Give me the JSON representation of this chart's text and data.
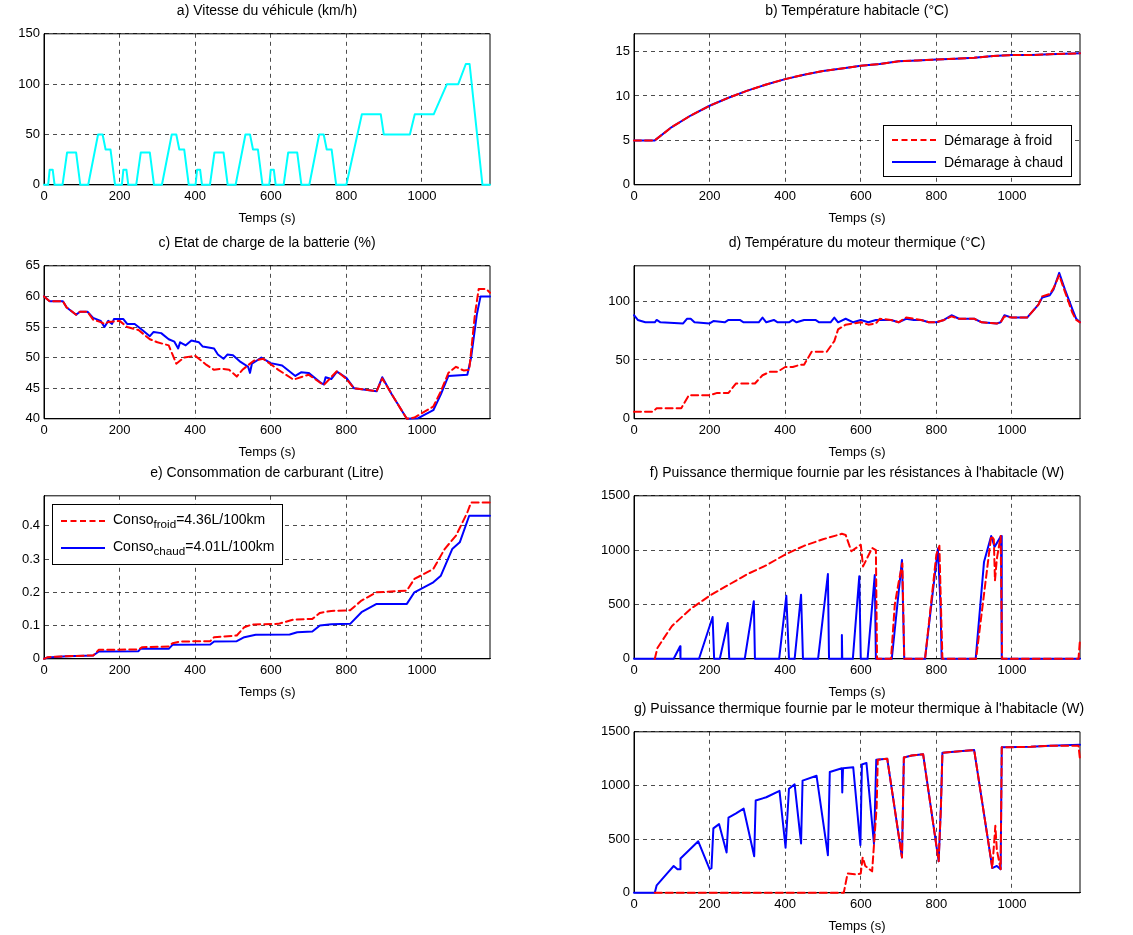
{
  "chart_data": [
    {
      "type": "line",
      "title": "a) Vitesse du véhicule (km/h)",
      "xlabel": "Temps (s)",
      "xlim": [
        0,
        1180
      ],
      "xticks": [
        0,
        200,
        400,
        600,
        800,
        1000
      ],
      "ylim": [
        0,
        150
      ],
      "yticks": [
        0,
        50,
        100,
        150
      ],
      "grid": true,
      "series": [
        {
          "color": "#00ffff",
          "line_style": "solid",
          "x": [
            0,
            11,
            15,
            23,
            28,
            49,
            61,
            85,
            96,
            117,
            143,
            155,
            163,
            176,
            188,
            195,
            206,
            210,
            218,
            223,
            244,
            256,
            280,
            291,
            312,
            338,
            350,
            358,
            371,
            383,
            390,
            401,
            405,
            413,
            418,
            439,
            451,
            475,
            486,
            507,
            533,
            545,
            553,
            566,
            578,
            585,
            596,
            600,
            608,
            613,
            634,
            646,
            670,
            681,
            702,
            728,
            740,
            748,
            761,
            773,
            800,
            841,
            891,
            899,
            968,
            981,
            1031,
            1066,
            1096,
            1116,
            1126,
            1160,
            1180
          ],
          "values": [
            0,
            0,
            15,
            15,
            0,
            0,
            32,
            32,
            0,
            0,
            50,
            50,
            35,
            35,
            0,
            0,
            0,
            15,
            15,
            0,
            0,
            32,
            32,
            0,
            0,
            50,
            50,
            35,
            35,
            0,
            0,
            0,
            15,
            15,
            0,
            0,
            32,
            32,
            0,
            0,
            50,
            50,
            35,
            35,
            0,
            0,
            0,
            15,
            15,
            0,
            0,
            32,
            32,
            0,
            0,
            50,
            50,
            35,
            35,
            0,
            0,
            70,
            70,
            50,
            50,
            70,
            70,
            100,
            100,
            120,
            120,
            0,
            0
          ]
        }
      ]
    },
    {
      "type": "line",
      "title": "b) Température habitacle (°C)",
      "xlabel": "Temps (s)",
      "xlim": [
        0,
        1180
      ],
      "xticks": [
        0,
        200,
        400,
        600,
        800,
        1000
      ],
      "ylim": [
        0,
        17
      ],
      "yticks": [
        0,
        5,
        10,
        15
      ],
      "grid": true,
      "legend": "bottom right",
      "series": [
        {
          "name": "Démarage à froid",
          "color": "#ff0000",
          "line_style": "dashed",
          "x": [
            0,
            55,
            100,
            150,
            200,
            250,
            300,
            350,
            400,
            450,
            500,
            550,
            600,
            650,
            700,
            750,
            800,
            850,
            900,
            950,
            1000,
            1050,
            1100,
            1180
          ],
          "values": [
            5,
            5,
            6.5,
            7.8,
            8.9,
            9.8,
            10.6,
            11.3,
            11.9,
            12.4,
            12.8,
            13.1,
            13.4,
            13.6,
            13.9,
            14.0,
            14.1,
            14.2,
            14.3,
            14.5,
            14.6,
            14.6,
            14.7,
            14.8
          ]
        },
        {
          "name": "Démarage à chaud",
          "color": "#0000ff",
          "line_style": "solid",
          "x": [
            0,
            55,
            100,
            150,
            200,
            250,
            300,
            350,
            400,
            450,
            500,
            550,
            600,
            650,
            700,
            750,
            800,
            850,
            900,
            950,
            1000,
            1050,
            1100,
            1180
          ],
          "values": [
            5,
            5,
            6.5,
            7.8,
            8.9,
            9.8,
            10.6,
            11.3,
            11.9,
            12.4,
            12.8,
            13.1,
            13.4,
            13.6,
            13.9,
            14.0,
            14.1,
            14.2,
            14.3,
            14.5,
            14.6,
            14.6,
            14.7,
            14.8
          ]
        }
      ]
    },
    {
      "type": "line",
      "title": "c) Etat de charge de la batterie (%)",
      "xlabel": "Temps (s)",
      "xlim": [
        0,
        1180
      ],
      "xticks": [
        0,
        200,
        400,
        600,
        800,
        1000
      ],
      "ylim": [
        40,
        65
      ],
      "yticks": [
        40,
        45,
        50,
        55,
        60,
        65
      ],
      "grid": true,
      "series": [
        {
          "color": "#ff0000",
          "line_style": "dashed",
          "x": [
            0,
            15,
            50,
            60,
            85,
            95,
            115,
            130,
            150,
            160,
            170,
            200,
            220,
            250,
            280,
            300,
            330,
            350,
            370,
            400,
            430,
            450,
            470,
            490,
            510,
            525,
            555,
            580,
            620,
            660,
            700,
            740,
            775,
            800,
            820,
            880,
            895,
            920,
            960,
            980,
            1030,
            1050,
            1070,
            1090,
            1110,
            1125,
            1140,
            1150,
            1170,
            1180
          ],
          "values": [
            60,
            59.2,
            59.2,
            58.2,
            57,
            57.5,
            57.5,
            56.2,
            55.8,
            55.5,
            55.8,
            56,
            55,
            54.5,
            53,
            52.5,
            52,
            49,
            50,
            50.3,
            48.8,
            48,
            48.2,
            48,
            46.9,
            48,
            49.5,
            49.8,
            48,
            46.4,
            47.2,
            45.5,
            47.8,
            46.5,
            45,
            44.5,
            46.6,
            44,
            40,
            40.2,
            42,
            44.5,
            47.5,
            48.5,
            47.9,
            48,
            57,
            61.2,
            61.2,
            60.6
          ]
        },
        {
          "color": "#0000ff",
          "line_style": "solid",
          "x": [
            0,
            15,
            50,
            60,
            85,
            95,
            115,
            130,
            150,
            160,
            170,
            180,
            185,
            210,
            220,
            240,
            260,
            280,
            290,
            310,
            330,
            345,
            355,
            360,
            375,
            390,
            410,
            420,
            450,
            460,
            475,
            485,
            500,
            520,
            540,
            545,
            550,
            575,
            600,
            630,
            665,
            680,
            700,
            730,
            740,
            745,
            760,
            775,
            800,
            820,
            880,
            895,
            920,
            960,
            990,
            1030,
            1050,
            1070,
            1120,
            1130,
            1145,
            1155,
            1180
          ],
          "values": [
            60,
            59.2,
            59.2,
            58.2,
            57,
            57.5,
            57.5,
            56.5,
            56,
            55,
            56,
            55.5,
            56.3,
            56.3,
            55.5,
            55.5,
            54.5,
            53.5,
            54.2,
            54,
            53,
            52.6,
            51.5,
            52.5,
            52,
            52.8,
            52.5,
            51.8,
            51.5,
            50.5,
            49.8,
            50.5,
            50.4,
            49.3,
            48.5,
            47.5,
            49,
            50,
            49.1,
            48.7,
            47,
            47.6,
            47.5,
            46,
            45.6,
            46.8,
            46.5,
            47.7,
            46.7,
            45,
            44.5,
            46.8,
            44,
            40,
            40.1,
            41.4,
            44,
            47,
            47.2,
            50,
            57,
            60,
            60
          ]
        }
      ]
    },
    {
      "type": "line",
      "title": "d) Température du moteur thermique (°C)",
      "xlabel": "Temps (s)",
      "xlim": [
        0,
        1180
      ],
      "xticks": [
        0,
        200,
        400,
        600,
        800,
        1000
      ],
      "ylim": [
        0,
        130
      ],
      "yticks": [
        0,
        50,
        100
      ],
      "grid": true,
      "series": [
        {
          "color": "#ff0000",
          "line_style": "dashed",
          "x": [
            0,
            50,
            60,
            125,
            145,
            200,
            220,
            250,
            270,
            320,
            340,
            360,
            380,
            400,
            420,
            440,
            450,
            470,
            510,
            530,
            540,
            560,
            580,
            600,
            620,
            640,
            650,
            680,
            700,
            720,
            760,
            780,
            800,
            820,
            840,
            860,
            900,
            920,
            960,
            970,
            980,
            1000,
            1040,
            1070,
            1080,
            1100,
            1110,
            1125,
            1140,
            1160,
            1170,
            1180
          ],
          "values": [
            6,
            6,
            9,
            9,
            20,
            20,
            22,
            22,
            30,
            30,
            37,
            40,
            40,
            44,
            44,
            46,
            46,
            57,
            57,
            66,
            76,
            80,
            81,
            82,
            80,
            81,
            85,
            84,
            82,
            86,
            84,
            82,
            82,
            84,
            87,
            85,
            85,
            82,
            81,
            82,
            87,
            86,
            86,
            97,
            104,
            106,
            111,
            122,
            108,
            90,
            84,
            82
          ]
        },
        {
          "color": "#0000ff",
          "line_style": "solid",
          "x": [
            0,
            10,
            30,
            55,
            60,
            70,
            130,
            140,
            150,
            160,
            200,
            210,
            240,
            250,
            280,
            290,
            330,
            340,
            350,
            370,
            380,
            410,
            420,
            430,
            450,
            480,
            490,
            520,
            530,
            540,
            560,
            580,
            600,
            620,
            640,
            680,
            700,
            720,
            740,
            760,
            780,
            800,
            820,
            840,
            860,
            900,
            920,
            960,
            970,
            980,
            1000,
            1040,
            1070,
            1080,
            1100,
            1110,
            1125,
            1140,
            1160,
            1170,
            1180
          ],
          "values": [
            88,
            84,
            82,
            82,
            84,
            82,
            81,
            85,
            85,
            82,
            81,
            83,
            82,
            84,
            84,
            82,
            82,
            86,
            82,
            84,
            82,
            82,
            84,
            82,
            84,
            84,
            82,
            82,
            86,
            82,
            85,
            82,
            84,
            82,
            84,
            84,
            82,
            85,
            84,
            84,
            82,
            82,
            84,
            88,
            85,
            85,
            82,
            81,
            82,
            88,
            86,
            86,
            97,
            103,
            105,
            110,
            124,
            110,
            93,
            85,
            82
          ]
        }
      ]
    },
    {
      "type": "line",
      "title": "e) Consommation de carburant (Litre)",
      "xlabel": "Temps (s)",
      "xlim": [
        0,
        1180
      ],
      "xticks": [
        0,
        200,
        400,
        600,
        800,
        1000
      ],
      "ylim": [
        0,
        0.49
      ],
      "yticks": [
        0,
        0.1,
        0.2,
        0.3,
        0.4
      ],
      "grid": true,
      "legend": "top left",
      "series": [
        {
          "name": "Conso$_{froid}$=4.36L/100km",
          "color": "#ff0000",
          "line_style": "dashed",
          "x": [
            0,
            10,
            60,
            130,
            145,
            250,
            260,
            330,
            340,
            360,
            440,
            450,
            510,
            530,
            550,
            620,
            660,
            710,
            730,
            760,
            810,
            840,
            880,
            960,
            980,
            1030,
            1060,
            1090,
            1120,
            1130,
            1180
          ],
          "values": [
            0,
            0.005,
            0.008,
            0.01,
            0.027,
            0.028,
            0.035,
            0.037,
            0.047,
            0.052,
            0.053,
            0.065,
            0.07,
            0.095,
            0.103,
            0.105,
            0.118,
            0.12,
            0.138,
            0.144,
            0.146,
            0.175,
            0.2,
            0.205,
            0.24,
            0.27,
            0.33,
            0.37,
            0.44,
            0.47,
            0.47
          ]
        },
        {
          "name": "Conso$_{chaud}$=4.01L/100km",
          "color": "#0000ff",
          "line_style": "solid",
          "x": [
            0,
            10,
            60,
            130,
            145,
            250,
            255,
            330,
            340,
            440,
            450,
            510,
            530,
            560,
            650,
            670,
            710,
            730,
            760,
            810,
            840,
            880,
            960,
            980,
            1030,
            1050,
            1080,
            1100,
            1125,
            1180
          ],
          "values": [
            0,
            0.004,
            0.008,
            0.01,
            0.022,
            0.023,
            0.03,
            0.03,
            0.042,
            0.043,
            0.052,
            0.053,
            0.065,
            0.072,
            0.073,
            0.08,
            0.082,
            0.1,
            0.104,
            0.105,
            0.14,
            0.165,
            0.165,
            0.2,
            0.23,
            0.25,
            0.33,
            0.35,
            0.43,
            0.43
          ]
        }
      ]
    },
    {
      "type": "line",
      "title": "f) Puissance thermique fournie par les résistances à l'habitacle (W)",
      "xlabel": "Temps (s)",
      "xlim": [
        0,
        1180
      ],
      "xticks": [
        0,
        200,
        400,
        600,
        800,
        1000
      ],
      "ylim": [
        0,
        1500
      ],
      "yticks": [
        0,
        500,
        1000,
        1500
      ],
      "grid": true,
      "series": [
        {
          "color": "#ff0000",
          "line_style": "dashed",
          "x": [
            55,
            62,
            100,
            150,
            200,
            250,
            300,
            350,
            400,
            450,
            500,
            550,
            560,
            575,
            600,
            606,
            630,
            640,
            643,
            680,
            690,
            700,
            710,
            715,
            770,
            800,
            808,
            812,
            816,
            905,
            945,
            952,
            955,
            960,
            970,
            974,
            1176,
            1180
          ],
          "values": [
            0,
            100,
            300,
            460,
            580,
            680,
            780,
            860,
            960,
            1040,
            1100,
            1150,
            1140,
            990,
            1050,
            850,
            1020,
            1000,
            0,
            0,
            500,
            700,
            880,
            0,
            0,
            960,
            1040,
            500,
            0,
            0,
            1130,
            1100,
            720,
            920,
            1130,
            0,
            0,
            180
          ]
        },
        {
          "color": "#0000ff",
          "line_style": "solid",
          "x": [
            0,
            105,
            122,
            123,
            172,
            208,
            212,
            227,
            248,
            252,
            293,
            317,
            320,
            384,
            403,
            410,
            425,
            442,
            447,
            487,
            513,
            516,
            549,
            550,
            551,
            579,
            596,
            600,
            618,
            637,
            640,
            682,
            709,
            715,
            770,
            804,
            811,
            814,
            904,
            926,
            945,
            954,
            971,
            973,
            1180
          ],
          "values": [
            0,
            0,
            115,
            0,
            0,
            385,
            0,
            0,
            330,
            0,
            0,
            530,
            0,
            0,
            580,
            0,
            0,
            590,
            0,
            0,
            780,
            0,
            0,
            220,
            0,
            0,
            760,
            0,
            0,
            770,
            0,
            0,
            910,
            0,
            0,
            1015,
            490,
            0,
            0,
            890,
            1130,
            1030,
            1130,
            0,
            0
          ]
        }
      ]
    },
    {
      "type": "line",
      "title": "g) Puissance thermique fournie par le moteur thermique à l'habitacle (W)",
      "xlabel": "Temps (s)",
      "xlim": [
        0,
        1180
      ],
      "xticks": [
        0,
        200,
        400,
        600,
        800,
        1000
      ],
      "ylim": [
        0,
        1500
      ],
      "yticks": [
        0,
        500,
        1000,
        1500
      ],
      "grid": true,
      "series": [
        {
          "color": "#ff0000",
          "line_style": "dashed",
          "x": [
            55,
            555,
            565,
            590,
            600,
            605,
            612,
            630,
            642,
            645,
            670,
            709,
            714,
            735,
            765,
            806,
            812,
            816,
            900,
            948,
            956,
            960,
            970,
            973,
            1050,
            1100,
            1176,
            1180
          ],
          "values": [
            0,
            0,
            180,
            170,
            180,
            330,
            250,
            200,
            800,
            1240,
            1250,
            330,
            1260,
            1280,
            1290,
            295,
            800,
            1305,
            1330,
            230,
            625,
            400,
            220,
            1355,
            1360,
            1370,
            1370,
            1240
          ]
        },
        {
          "color": "#0000ff",
          "line_style": "solid",
          "x": [
            0,
            55,
            60,
            90,
            105,
            115,
            122,
            123,
            170,
            200,
            205,
            210,
            225,
            245,
            250,
            270,
            290,
            318,
            322,
            350,
            385,
            401,
            410,
            425,
            442,
            446,
            483,
            513,
            518,
            550,
            551,
            553,
            580,
            599,
            603,
            615,
            635,
            641,
            670,
            709,
            714,
            735,
            765,
            806,
            812,
            816,
            900,
            948,
            960,
            970,
            973,
            1050,
            1100,
            1180
          ],
          "values": [
            0,
            0,
            70,
            190,
            250,
            220,
            220,
            320,
            480,
            220,
            230,
            600,
            640,
            375,
            700,
            740,
            785,
            340,
            860,
            890,
            950,
            420,
            970,
            1010,
            460,
            1045,
            1090,
            350,
            1125,
            1160,
            935,
            1160,
            1170,
            445,
            1195,
            1210,
            455,
            1240,
            1250,
            330,
            1260,
            1280,
            1290,
            295,
            800,
            1305,
            1330,
            230,
            250,
            220,
            1355,
            1360,
            1370,
            1380
          ]
        }
      ]
    }
  ]
}
